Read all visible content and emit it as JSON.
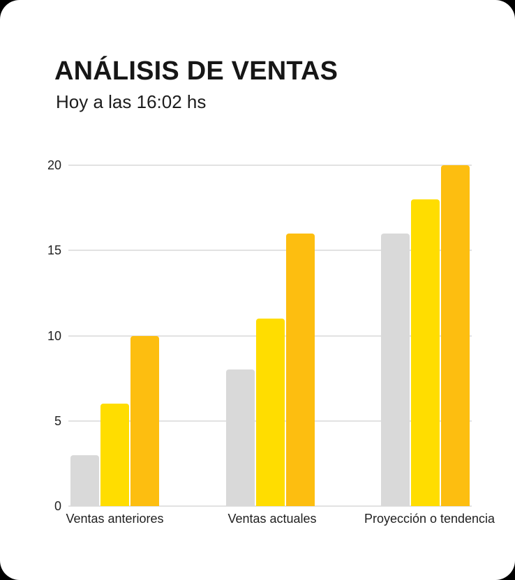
{
  "header": {
    "title": "ANÁLISIS DE VENTAS",
    "subtitle": "Hoy a las 16:02 hs"
  },
  "chart_data": {
    "type": "bar",
    "title": "ANÁLISIS DE VENTAS",
    "subtitle": "Hoy a las 16:02 hs",
    "categories": [
      "Ventas anteriores",
      "Ventas actuales",
      "Proyección o tendencia"
    ],
    "series": [
      {
        "name": "gray",
        "color": "#D9D9D9",
        "values": [
          3,
          8,
          16
        ]
      },
      {
        "name": "yellow",
        "color": "#FFDD00",
        "values": [
          6,
          11,
          18
        ]
      },
      {
        "name": "amber",
        "color": "#FDBE10",
        "values": [
          10,
          16,
          20
        ]
      }
    ],
    "xlabel": "",
    "ylabel": "",
    "ylim": [
      0,
      20
    ],
    "yticks": [
      0,
      5,
      10,
      15,
      20
    ],
    "grid": true,
    "legend_position": "none",
    "gridline_color": "#E2E2E2",
    "tick_label_color": "#1F1F1F"
  }
}
